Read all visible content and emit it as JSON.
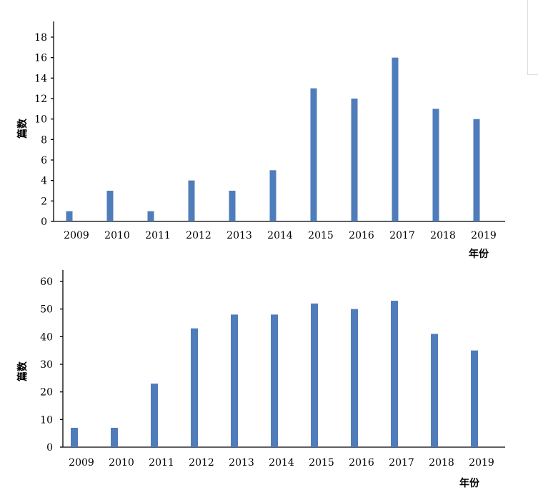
{
  "chart_data": [
    {
      "type": "bar",
      "categories": [
        "2009",
        "2010",
        "2011",
        "2012",
        "2013",
        "2014",
        "2015",
        "2016",
        "2017",
        "2018",
        "2019"
      ],
      "values": [
        1,
        3,
        1,
        4,
        3,
        5,
        13,
        12,
        16,
        11,
        10
      ],
      "title": "",
      "xlabel": "年份",
      "ylabel": "篇数",
      "ylim": [
        0,
        18
      ],
      "yticks": [
        "0",
        "2",
        "4",
        "6",
        "8",
        "10",
        "12",
        "14",
        "16",
        "18"
      ],
      "grid": false,
      "legend": "none",
      "bar_color": "#4f7cba"
    },
    {
      "type": "bar",
      "categories": [
        "2009",
        "2010",
        "2011",
        "2012",
        "2013",
        "2014",
        "2015",
        "2016",
        "2017",
        "2018",
        "2019"
      ],
      "values": [
        7,
        7,
        23,
        43,
        48,
        48,
        52,
        50,
        53,
        41,
        35
      ],
      "title": "",
      "xlabel": "年份",
      "ylabel": "篇数",
      "ylim": [
        0,
        60
      ],
      "yticks": [
        "0",
        "10",
        "20",
        "30",
        "40",
        "50",
        "60"
      ],
      "grid": false,
      "legend": "none",
      "bar_color": "#4f7cba"
    }
  ]
}
